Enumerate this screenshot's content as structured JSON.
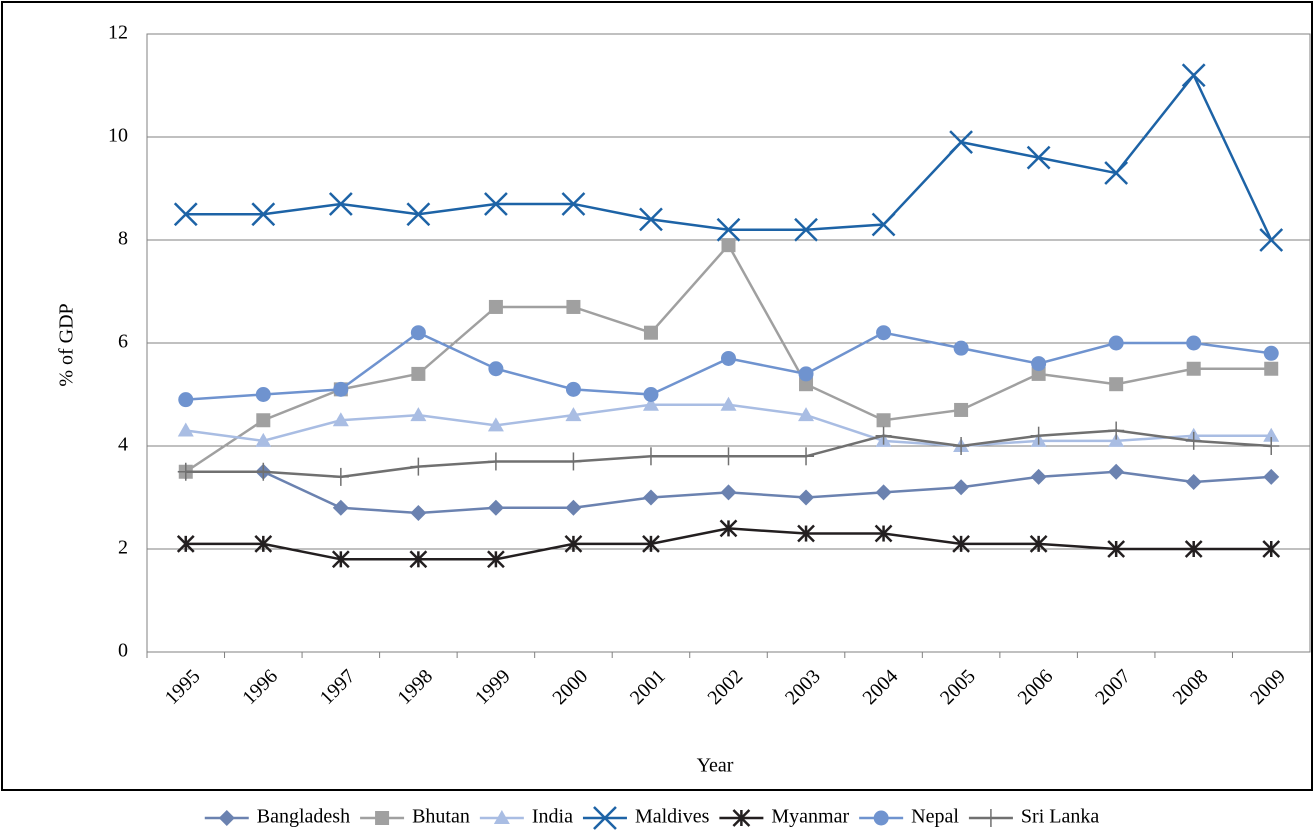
{
  "chart_data": {
    "type": "line",
    "y_label": "% of GDP",
    "x_label": "Year",
    "categories": [
      "1995",
      "1996",
      "1997",
      "1998",
      "1999",
      "2000",
      "2001",
      "2002",
      "2003",
      "2004",
      "2005",
      "2006",
      "2007",
      "2008",
      "2009"
    ],
    "ylim": [
      0,
      12
    ],
    "yticks": [
      0,
      2,
      4,
      6,
      8,
      10,
      12
    ],
    "grid": true,
    "legend": "bottom",
    "series": [
      {
        "name": "Bangladesh",
        "color": "#6b82b0",
        "marker": "diamond",
        "values": [
          3.5,
          3.5,
          2.8,
          2.7,
          2.8,
          2.8,
          3.0,
          3.1,
          3.0,
          3.1,
          3.2,
          3.4,
          3.5,
          3.3,
          3.4
        ]
      },
      {
        "name": "Bhutan",
        "color": "#a0a0a0",
        "marker": "square",
        "values": [
          3.5,
          4.5,
          5.1,
          5.4,
          6.7,
          6.7,
          6.2,
          7.9,
          5.2,
          4.5,
          4.7,
          5.4,
          5.2,
          5.5,
          5.5
        ]
      },
      {
        "name": "India",
        "color": "#a9bde3",
        "marker": "triangle",
        "values": [
          4.3,
          4.1,
          4.5,
          4.6,
          4.4,
          4.6,
          4.8,
          4.8,
          4.6,
          4.1,
          4.0,
          4.1,
          4.1,
          4.2,
          4.2
        ]
      },
      {
        "name": "Maldives",
        "color": "#1d63a6",
        "marker": "x",
        "values": [
          8.5,
          8.5,
          8.7,
          8.5,
          8.7,
          8.7,
          8.4,
          8.2,
          8.2,
          8.3,
          9.9,
          9.6,
          9.3,
          11.2,
          8.0
        ]
      },
      {
        "name": "Myanmar",
        "color": "#231f20",
        "marker": "star",
        "values": [
          2.1,
          2.1,
          1.8,
          1.8,
          1.8,
          2.1,
          2.1,
          2.4,
          2.3,
          2.3,
          2.1,
          2.1,
          2.0,
          2.0,
          2.0
        ]
      },
      {
        "name": "Nepal",
        "color": "#6f93cf",
        "marker": "circle",
        "values": [
          4.9,
          5.0,
          5.1,
          6.2,
          5.5,
          5.1,
          5.0,
          5.7,
          5.4,
          6.2,
          5.9,
          5.6,
          6.0,
          6.0,
          5.8
        ]
      },
      {
        "name": "Sri Lanka",
        "color": "#707070",
        "marker": "plus",
        "values": [
          3.5,
          3.5,
          3.4,
          3.6,
          3.7,
          3.7,
          3.8,
          3.8,
          3.8,
          4.2,
          4.0,
          4.2,
          4.3,
          4.1,
          4.0
        ]
      }
    ]
  }
}
